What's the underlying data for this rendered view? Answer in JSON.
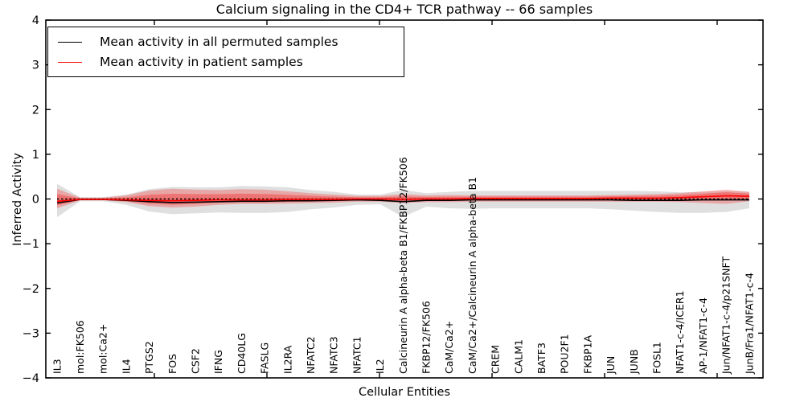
{
  "chart_data": {
    "type": "line",
    "title": "Calcium signaling in the CD4+ TCR pathway -- 66 samples",
    "xlabel": "Cellular Entities",
    "ylabel": "Inferred Activity",
    "ylim": [
      -4,
      4
    ],
    "yticks": [
      4,
      3,
      2,
      1,
      0,
      -1,
      -2,
      -3,
      -4
    ],
    "grid": false,
    "legend_position": "upper left",
    "zero_line": {
      "y": 0,
      "style": "dashed",
      "color": "#000000"
    },
    "categories": [
      "IL3",
      "mol:FK506",
      "mol:Ca2+",
      "IL4",
      "PTGS2",
      "FOS",
      "CSF2",
      "IFNG",
      "CD40LG",
      "FASLG",
      "IL2RA",
      "NFATC2",
      "NFATC3",
      "NFATC1",
      "IL2",
      "Calcineurin A alpha-beta B1/FKBP12/FK506",
      "FKBP12/FK506",
      "CaM/Ca2+",
      "CaM/Ca2+/Calcineurin A alpha-beta B1",
      "CREM",
      "CALM1",
      "BATF3",
      "POU2F1",
      "FKBP1A",
      "JUN",
      "JUNB",
      "FOSL1",
      "NFAT1-c-4/ICER1",
      "AP-1/NFAT1-c-4",
      "Jun/NFAT1-c-4/p21SNFT",
      "JunB/Fra1/NFAT1-c-4"
    ],
    "series": [
      {
        "name": "Mean activity in all permuted samples",
        "color": "#000000",
        "band_color": "rgba(110,110,110,0.22)",
        "values": [
          -0.09,
          -0.01,
          -0.01,
          -0.03,
          -0.06,
          -0.08,
          -0.07,
          -0.06,
          -0.05,
          -0.05,
          -0.04,
          -0.04,
          -0.03,
          -0.02,
          -0.03,
          -0.06,
          -0.03,
          -0.03,
          -0.02,
          -0.02,
          -0.02,
          -0.02,
          -0.02,
          -0.02,
          -0.02,
          -0.03,
          -0.03,
          -0.03,
          -0.02,
          -0.02,
          -0.02
        ],
        "band_upper": [
          0.34,
          0.04,
          0.04,
          0.1,
          0.22,
          0.27,
          0.26,
          0.26,
          0.29,
          0.28,
          0.26,
          0.2,
          0.16,
          0.1,
          0.1,
          0.2,
          0.13,
          0.16,
          0.18,
          0.18,
          0.18,
          0.18,
          0.18,
          0.18,
          0.18,
          0.18,
          0.17,
          0.15,
          0.16,
          0.18,
          0.16
        ],
        "band_lower": [
          -0.41,
          -0.05,
          -0.05,
          -0.13,
          -0.28,
          -0.34,
          -0.32,
          -0.3,
          -0.31,
          -0.31,
          -0.29,
          -0.23,
          -0.19,
          -0.13,
          -0.12,
          -0.4,
          -0.17,
          -0.21,
          -0.22,
          -0.21,
          -0.21,
          -0.21,
          -0.21,
          -0.21,
          -0.23,
          -0.26,
          -0.29,
          -0.31,
          -0.31,
          -0.29,
          -0.21
        ]
      },
      {
        "name": "Mean activity in patient samples",
        "color": "#ff0000",
        "band_color": "rgba(255,0,0,0.25)",
        "values": [
          -0.05,
          -0.01,
          -0.01,
          -0.02,
          -0.03,
          -0.04,
          -0.03,
          -0.02,
          -0.02,
          -0.02,
          -0.01,
          -0.01,
          -0.01,
          0.0,
          0.0,
          -0.01,
          0.0,
          0.0,
          0.01,
          0.01,
          0.01,
          0.01,
          0.01,
          0.01,
          0.02,
          0.02,
          0.02,
          0.03,
          0.05,
          0.07,
          0.06
        ],
        "band_upper": [
          0.23,
          0.03,
          0.03,
          0.08,
          0.19,
          0.23,
          0.21,
          0.2,
          0.22,
          0.21,
          0.17,
          0.13,
          0.1,
          0.07,
          0.07,
          0.11,
          0.08,
          0.09,
          0.08,
          0.08,
          0.08,
          0.08,
          0.08,
          0.08,
          0.09,
          0.1,
          0.11,
          0.13,
          0.17,
          0.21,
          0.16
        ],
        "band_lower": [
          -0.21,
          -0.03,
          -0.03,
          -0.07,
          -0.16,
          -0.19,
          -0.17,
          -0.13,
          -0.11,
          -0.11,
          -0.1,
          -0.09,
          -0.08,
          -0.06,
          -0.06,
          -0.09,
          -0.07,
          -0.07,
          -0.06,
          -0.06,
          -0.06,
          -0.06,
          -0.06,
          -0.06,
          -0.06,
          -0.06,
          -0.06,
          -0.07,
          -0.09,
          -0.11,
          -0.05
        ]
      }
    ]
  }
}
